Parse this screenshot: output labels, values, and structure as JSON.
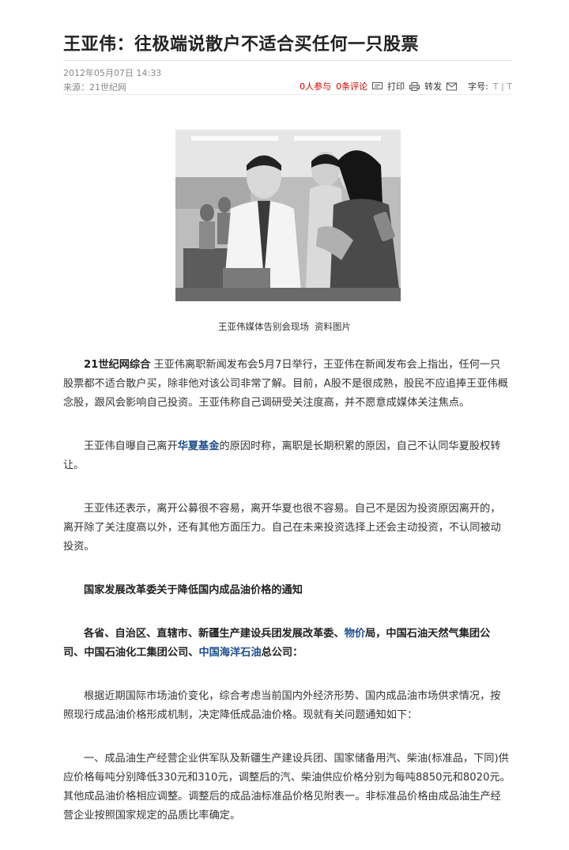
{
  "article": {
    "title": "王亚伟：往极端说散户不适合买任何一只股票",
    "date": "2012年05月07日 14:33",
    "source": "来源：21世纪网",
    "participants": "0人参与",
    "comments": "0条评论",
    "print": "打印",
    "forward": "转发",
    "font_size_label": "字号:",
    "font_size_options": "T | T",
    "photo_caption": "王亚伟媒体告别会现场 资料图片",
    "p1_lead": "21世纪网综合",
    "p1_text": " 王亚伟离职新闻发布会5月7日举行，王亚伟在新闻发布会上指出，任何一只股票都不适合散户买，除非他对该公司非常了解。目前，A股不是很成熟，股民不应追捧王亚伟概念股，跟风会影响自己投资。王亚伟称自己调研受关注度高，并不愿意成媒体关注焦点。",
    "p2_before": "王亚伟自曝自己离开",
    "p2_link": "华夏基金",
    "p2_after": "的原因时称，离职是长期积累的原因，自己不认同华夏股权转让。",
    "p3_text": "王亚伟还表示，离开公募很不容易，离开华夏也很不容易。自己不是因为投资原因离开的，离开除了关注度高以外，还有其他方面压力。自己在未来投资选择上还会主动投资，不认同被动投资。",
    "notice_title": "国家发展改革委关于降低国内成品油价格的通知",
    "p5_part1": "各省、自治区、直辖市、新疆生产建设兵团发展改革委、",
    "p5_link1": "物价",
    "p5_part2": "局，中国石油天然气集团公司、中国石油化工集团公司、",
    "p5_link2": "中国海洋石油",
    "p5_part3": "总公司：",
    "p6_text": "根据近期国际市场油价变化，综合考虑当前国内外经济形势、国内成品油市场供求情况，按照现行成品油价格形成机制，决定降低成品油价格。现就有关问题通知如下：",
    "p7_text": "一、成品油生产经营企业供军队及新疆生产建设兵团、国家储备用汽、柴油(标准品，下同)供应价格每吨分别降低330元和310元，调整后的汽、柴油供应价格分别为每吨8850元和8020元。其他成品油价格相应调整。调整后的成品油标准品价格见附表一。非标准品价格由成品油生产经营企业按照国家规定的品质比率确定。"
  },
  "colors": {
    "link": "#1f4e8c",
    "accent_red": "#cc0000",
    "meta_gray": "#888888"
  },
  "icons": [
    "comment-icon",
    "print-icon",
    "mail-icon"
  ]
}
